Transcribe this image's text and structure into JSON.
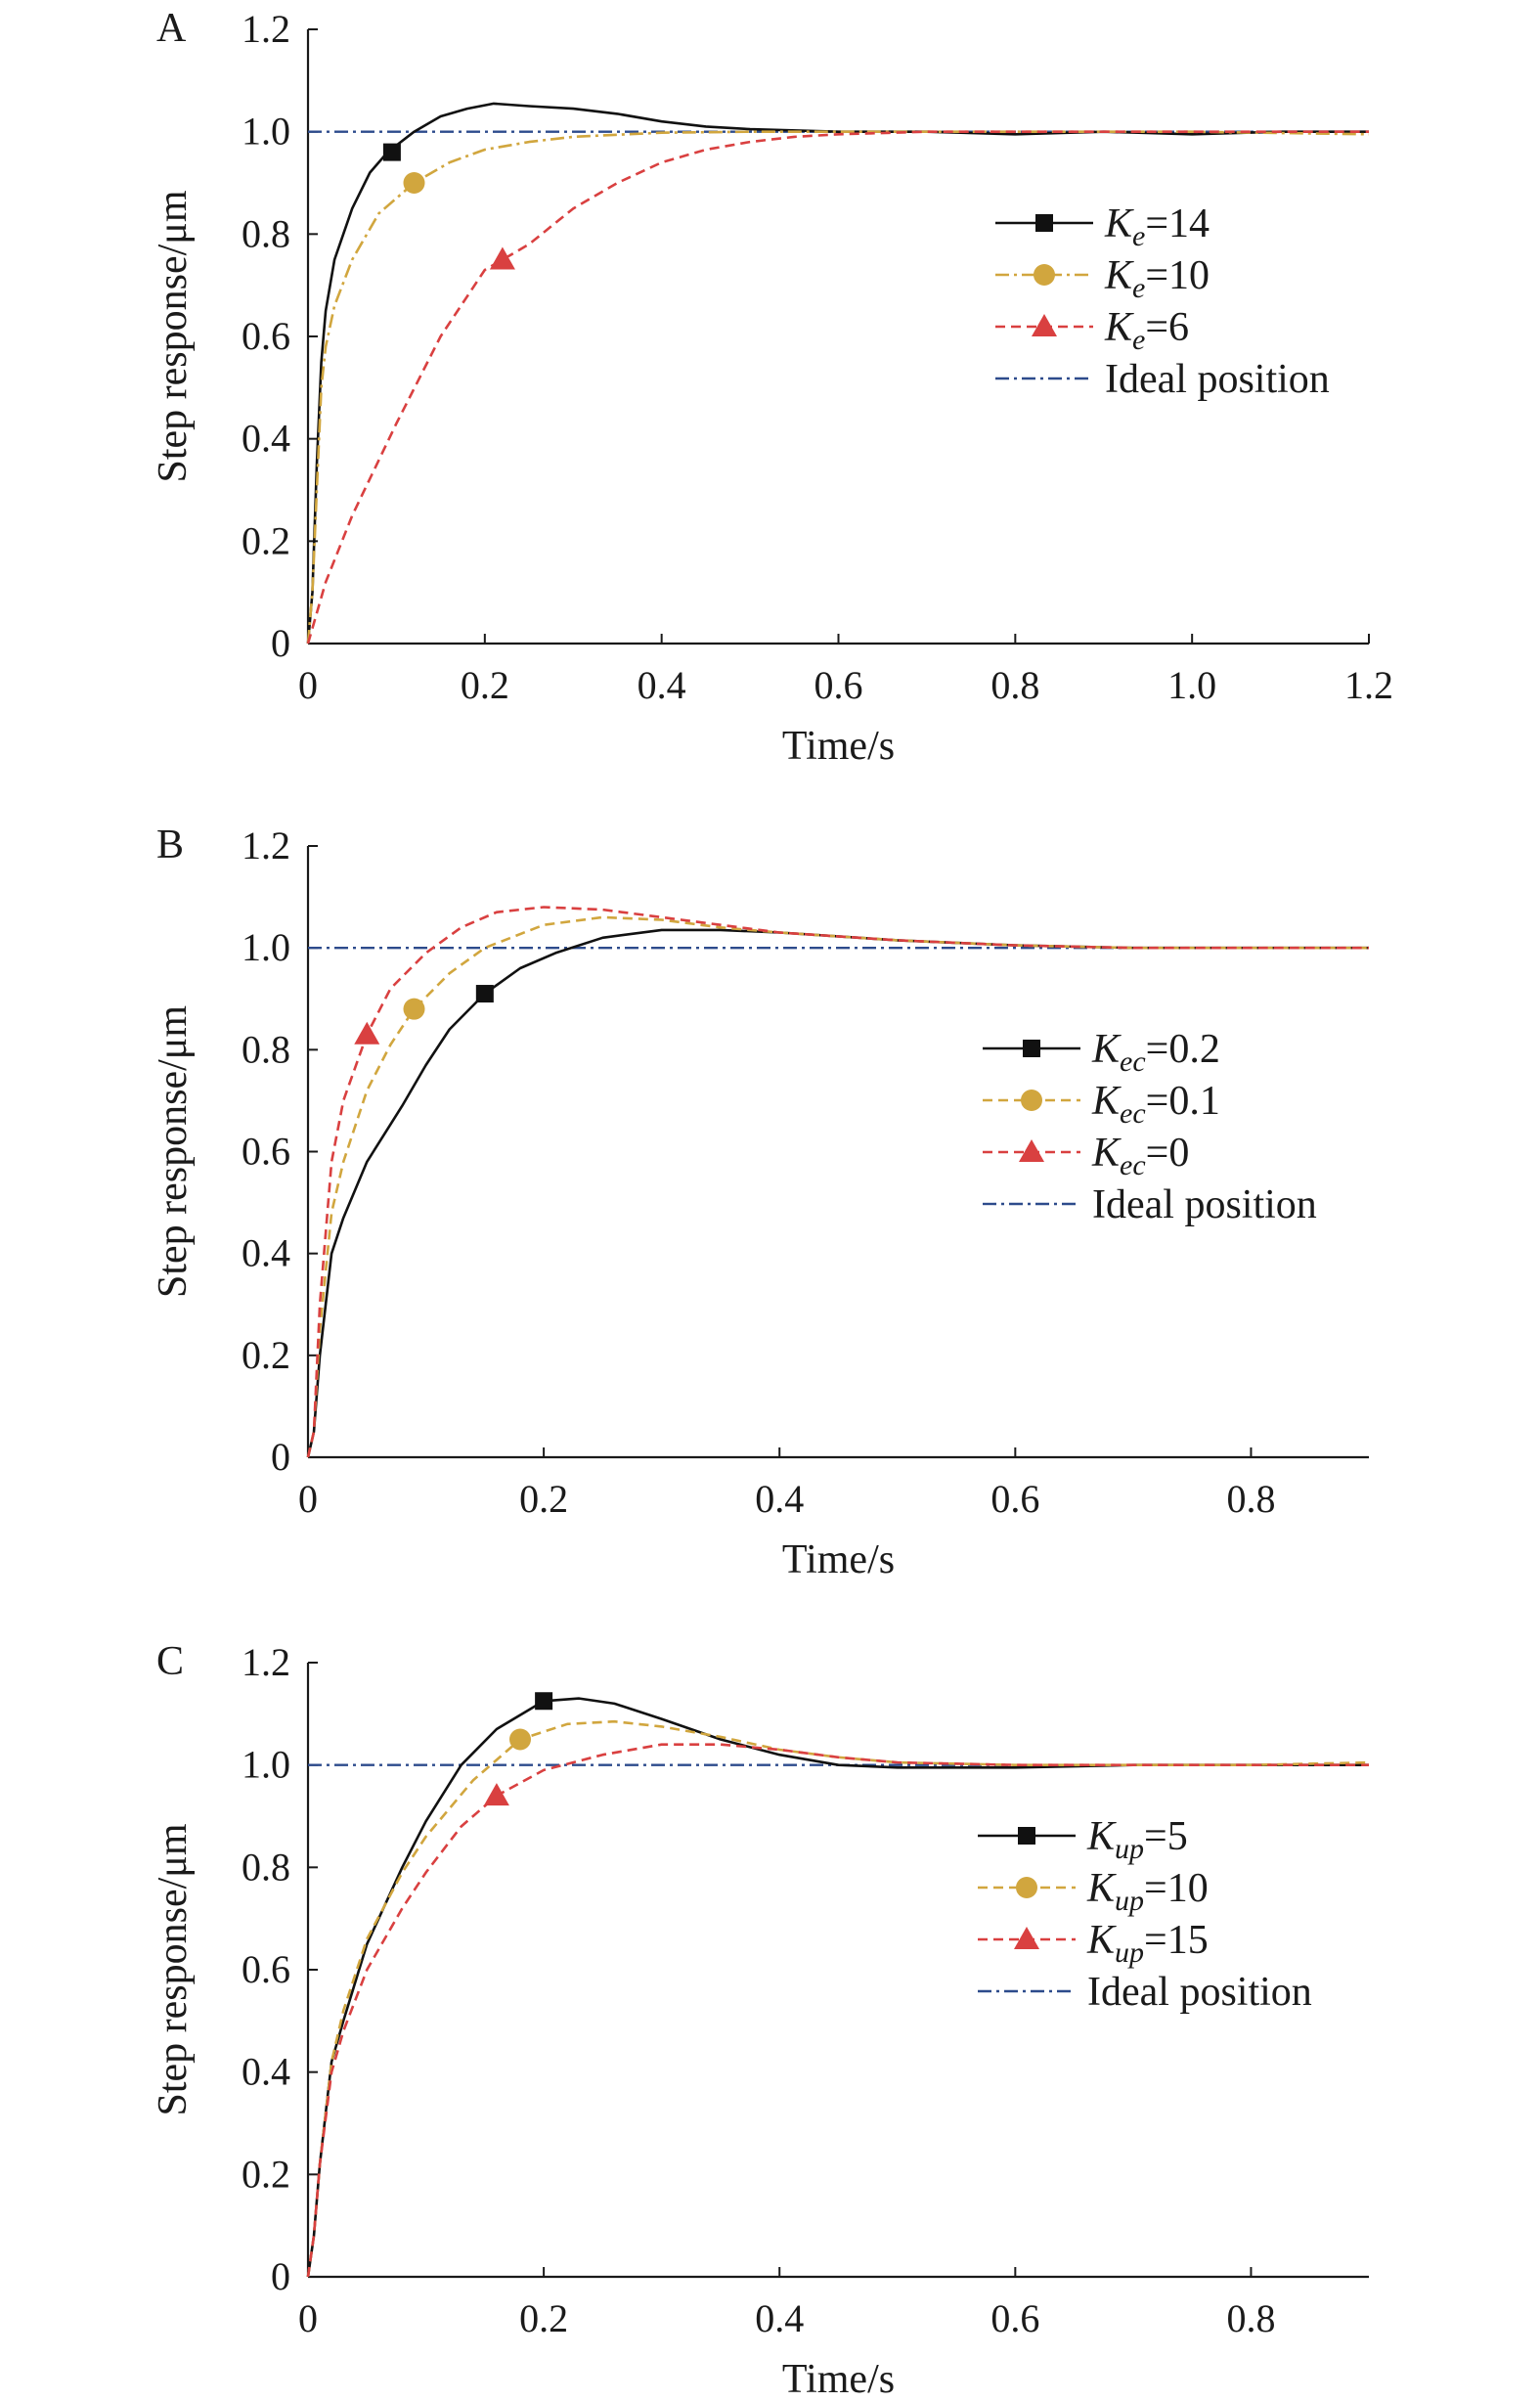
{
  "colors": {
    "axis": "#1a1a1a",
    "series_black": "#111111",
    "series_gold": "#d1a63e",
    "series_red": "#d94040",
    "ideal": "#2d4b8c"
  },
  "chart_data": [
    {
      "type": "line",
      "panel": "A",
      "xlabel": "Time/s",
      "ylabel": "Step response/μm",
      "xlim": [
        0,
        1.2
      ],
      "ylim": [
        0,
        1.2
      ],
      "xticks": [
        "0",
        "0.2",
        "0.4",
        "0.6",
        "0.8",
        "1.0",
        "1.2"
      ],
      "yticks": [
        "0",
        "0.2",
        "0.4",
        "0.6",
        "0.8",
        "1.0",
        "1.2"
      ],
      "legend_position": "right",
      "series": [
        {
          "key": "black",
          "name_main": "K",
          "name_sub": "e",
          "name_tail": "=14",
          "marker": "square",
          "style": "solid",
          "x": [
            0,
            0.005,
            0.01,
            0.015,
            0.02,
            0.03,
            0.05,
            0.07,
            0.09,
            0.12,
            0.15,
            0.18,
            0.21,
            0.25,
            0.3,
            0.35,
            0.4,
            0.45,
            0.5,
            0.6,
            0.7,
            0.8,
            0.9,
            1.0,
            1.1,
            1.2
          ],
          "y": [
            0,
            0.1,
            0.35,
            0.55,
            0.65,
            0.75,
            0.85,
            0.92,
            0.96,
            1.0,
            1.03,
            1.045,
            1.055,
            1.05,
            1.045,
            1.035,
            1.02,
            1.01,
            1.005,
            1.0,
            1.0,
            0.995,
            1.0,
            0.995,
            1.0,
            1.0
          ],
          "marker_at": [
            0.095,
            0.96
          ]
        },
        {
          "key": "gold",
          "name_main": "K",
          "name_sub": "e",
          "name_tail": "=10",
          "marker": "circle",
          "style": "dashdot",
          "x": [
            0,
            0.005,
            0.01,
            0.015,
            0.02,
            0.03,
            0.05,
            0.08,
            0.12,
            0.16,
            0.2,
            0.25,
            0.3,
            0.4,
            0.5,
            0.6,
            0.7,
            0.8,
            1.0,
            1.2
          ],
          "y": [
            0,
            0.1,
            0.3,
            0.5,
            0.58,
            0.66,
            0.75,
            0.84,
            0.9,
            0.94,
            0.965,
            0.98,
            0.99,
            0.998,
            1.0,
            1.0,
            1.0,
            1.0,
            1.0,
            0.995
          ],
          "marker_at": [
            0.12,
            0.9
          ]
        },
        {
          "key": "red",
          "name_main": "K",
          "name_sub": "e",
          "name_tail": "=6",
          "marker": "triangle",
          "style": "dashed",
          "x": [
            0,
            0.02,
            0.05,
            0.1,
            0.15,
            0.2,
            0.25,
            0.3,
            0.35,
            0.4,
            0.45,
            0.5,
            0.55,
            0.6,
            0.7,
            0.8,
            0.9,
            1.0,
            1.1,
            1.2
          ],
          "y": [
            0,
            0.12,
            0.25,
            0.43,
            0.6,
            0.73,
            0.78,
            0.85,
            0.9,
            0.94,
            0.965,
            0.98,
            0.99,
            0.995,
            1.0,
            1.0,
            1.0,
            1.0,
            1.0,
            1.0
          ],
          "marker_at": [
            0.22,
            0.75
          ]
        }
      ],
      "ideal": {
        "name": "Ideal position",
        "y": 1.0
      }
    },
    {
      "type": "line",
      "panel": "B",
      "xlabel": "Time/s",
      "ylabel": "Step response/μm",
      "xlim": [
        0,
        0.9
      ],
      "ylim": [
        0,
        1.2
      ],
      "xticks": [
        "0",
        "0.2",
        "0.4",
        "0.6",
        "0.8"
      ],
      "yticks": [
        "0",
        "0.2",
        "0.4",
        "0.6",
        "0.8",
        "1.0",
        "1.2"
      ],
      "legend_position": "right",
      "series": [
        {
          "key": "black",
          "name_main": "K",
          "name_sub": "ec",
          "name_tail": "=0.2",
          "marker": "square",
          "style": "solid",
          "x": [
            0,
            0.005,
            0.01,
            0.02,
            0.03,
            0.05,
            0.08,
            0.1,
            0.12,
            0.15,
            0.18,
            0.21,
            0.25,
            0.3,
            0.35,
            0.4,
            0.5,
            0.6,
            0.7,
            0.8,
            0.9
          ],
          "y": [
            0,
            0.05,
            0.2,
            0.4,
            0.47,
            0.58,
            0.69,
            0.77,
            0.84,
            0.91,
            0.96,
            0.99,
            1.02,
            1.035,
            1.035,
            1.03,
            1.015,
            1.005,
            1.0,
            1.0,
            1.0
          ],
          "marker_at": [
            0.15,
            0.91
          ]
        },
        {
          "key": "gold",
          "name_main": "K",
          "name_sub": "ec",
          "name_tail": "=0.1",
          "marker": "circle",
          "style": "dashed",
          "x": [
            0,
            0.005,
            0.01,
            0.02,
            0.03,
            0.05,
            0.07,
            0.09,
            0.12,
            0.15,
            0.2,
            0.25,
            0.3,
            0.35,
            0.4,
            0.5,
            0.6,
            0.7,
            0.8,
            0.9
          ],
          "y": [
            0,
            0.05,
            0.25,
            0.48,
            0.58,
            0.72,
            0.81,
            0.88,
            0.95,
            1.0,
            1.045,
            1.06,
            1.055,
            1.04,
            1.03,
            1.015,
            1.005,
            1.0,
            1.0,
            1.0
          ],
          "marker_at": [
            0.09,
            0.88
          ]
        },
        {
          "key": "red",
          "name_main": "K",
          "name_sub": "ec",
          "name_tail": "=0",
          "marker": "triangle",
          "style": "dashed",
          "x": [
            0,
            0.005,
            0.01,
            0.02,
            0.03,
            0.05,
            0.07,
            0.1,
            0.13,
            0.16,
            0.2,
            0.25,
            0.3,
            0.35,
            0.4,
            0.5,
            0.6,
            0.7,
            0.8,
            0.9
          ],
          "y": [
            0,
            0.05,
            0.3,
            0.58,
            0.7,
            0.83,
            0.92,
            0.99,
            1.04,
            1.07,
            1.08,
            1.075,
            1.06,
            1.045,
            1.03,
            1.015,
            1.005,
            1.0,
            1.0,
            1.0
          ],
          "marker_at": [
            0.05,
            0.83
          ]
        }
      ],
      "ideal": {
        "name": "Ideal position",
        "y": 1.0
      }
    },
    {
      "type": "line",
      "panel": "C",
      "xlabel": "Time/s",
      "ylabel": "Step response/μm",
      "xlim": [
        0,
        0.9
      ],
      "ylim": [
        0,
        1.2
      ],
      "xticks": [
        "0",
        "0.2",
        "0.4",
        "0.6",
        "0.8"
      ],
      "yticks": [
        "0",
        "0.2",
        "0.4",
        "0.6",
        "0.8",
        "1.0",
        "1.2"
      ],
      "legend_position": "right",
      "series": [
        {
          "key": "black",
          "name_main": "K",
          "name_sub": "up",
          "name_tail": "=5",
          "marker": "square",
          "style": "solid",
          "x": [
            0,
            0.005,
            0.01,
            0.02,
            0.03,
            0.05,
            0.08,
            0.1,
            0.13,
            0.16,
            0.2,
            0.23,
            0.26,
            0.3,
            0.35,
            0.4,
            0.45,
            0.5,
            0.6,
            0.7,
            0.8,
            0.9
          ],
          "y": [
            0,
            0.08,
            0.22,
            0.42,
            0.5,
            0.65,
            0.8,
            0.89,
            1.0,
            1.07,
            1.125,
            1.13,
            1.12,
            1.09,
            1.05,
            1.02,
            1.0,
            0.995,
            0.995,
            1.0,
            1.0,
            1.0
          ],
          "marker_at": [
            0.2,
            1.125
          ]
        },
        {
          "key": "gold",
          "name_main": "K",
          "name_sub": "up",
          "name_tail": "=10",
          "marker": "circle",
          "style": "dashed",
          "x": [
            0,
            0.005,
            0.01,
            0.02,
            0.03,
            0.05,
            0.08,
            0.1,
            0.14,
            0.18,
            0.22,
            0.26,
            0.3,
            0.35,
            0.4,
            0.45,
            0.5,
            0.6,
            0.7,
            0.8,
            0.9
          ],
          "y": [
            0,
            0.08,
            0.22,
            0.42,
            0.52,
            0.66,
            0.79,
            0.86,
            0.97,
            1.05,
            1.08,
            1.085,
            1.075,
            1.055,
            1.03,
            1.015,
            1.005,
            1.0,
            1.0,
            1.0,
            1.005
          ],
          "marker_at": [
            0.18,
            1.05
          ]
        },
        {
          "key": "red",
          "name_main": "K",
          "name_sub": "up",
          "name_tail": "=15",
          "marker": "triangle",
          "style": "dashed",
          "x": [
            0,
            0.005,
            0.01,
            0.02,
            0.03,
            0.05,
            0.08,
            0.1,
            0.13,
            0.16,
            0.2,
            0.25,
            0.3,
            0.35,
            0.4,
            0.45,
            0.5,
            0.6,
            0.7,
            0.8,
            0.9
          ],
          "y": [
            0,
            0.08,
            0.22,
            0.4,
            0.48,
            0.6,
            0.72,
            0.79,
            0.88,
            0.94,
            0.99,
            1.02,
            1.04,
            1.04,
            1.03,
            1.015,
            1.005,
            1.0,
            1.0,
            1.0,
            1.0
          ],
          "marker_at": [
            0.16,
            0.94
          ]
        }
      ],
      "ideal": {
        "name": "Ideal position",
        "y": 1.0
      }
    }
  ]
}
